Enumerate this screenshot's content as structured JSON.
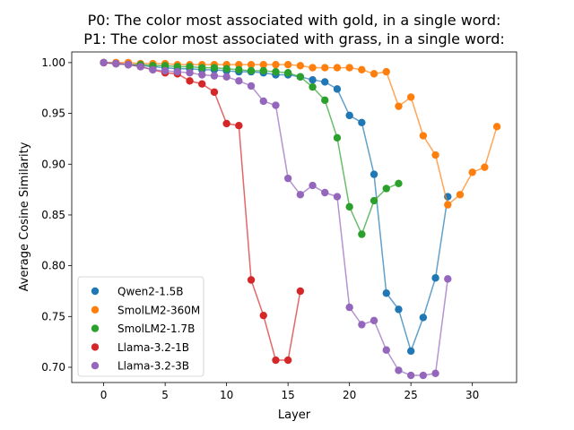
{
  "chart_data": {
    "type": "line",
    "title": "P0: The color most associated with gold, in a single word:",
    "subtitle": "P1: The color most associated with grass, in a single word:",
    "xlabel": "Layer",
    "ylabel": "Average Cosine Similarity",
    "xlim": [
      -2.6,
      33.6
    ],
    "ylim": [
      0.685,
      1.0105
    ],
    "xticks": [
      0,
      5,
      10,
      15,
      20,
      25,
      30
    ],
    "yticks": [
      0.7,
      0.75,
      0.8,
      0.85,
      0.9,
      0.95,
      1.0
    ],
    "xtick_labels": [
      "0",
      "5",
      "10",
      "15",
      "20",
      "25",
      "30"
    ],
    "ytick_labels": [
      "0.70",
      "0.75",
      "0.80",
      "0.85",
      "0.90",
      "0.95",
      "1.00"
    ],
    "grid": false,
    "legend_position": "lower left",
    "series": [
      {
        "name": "Qwen2-1.5B",
        "color": "#1f77b4",
        "x": [
          0,
          1,
          2,
          3,
          4,
          5,
          6,
          7,
          8,
          9,
          10,
          11,
          12,
          13,
          14,
          15,
          16,
          17,
          18,
          19,
          20,
          21,
          22,
          23,
          24,
          25,
          26,
          27,
          28
        ],
        "y": [
          1.0,
          0.999,
          0.998,
          0.997,
          0.996,
          0.995,
          0.994,
          0.994,
          0.993,
          0.993,
          0.992,
          0.991,
          0.991,
          0.99,
          0.988,
          0.988,
          0.986,
          0.983,
          0.981,
          0.974,
          0.948,
          0.941,
          0.89,
          0.773,
          0.757,
          0.716,
          0.749,
          0.788,
          0.868
        ]
      },
      {
        "name": "SmolLM2-360M",
        "color": "#ff7f0e",
        "x": [
          0,
          1,
          2,
          3,
          4,
          5,
          6,
          7,
          8,
          9,
          10,
          11,
          12,
          13,
          14,
          15,
          16,
          17,
          18,
          19,
          20,
          21,
          22,
          23,
          24,
          25,
          26,
          27,
          28,
          29,
          30,
          31,
          32
        ],
        "y": [
          1.0,
          1.0,
          1.0,
          0.999,
          0.999,
          0.999,
          0.998,
          0.998,
          0.998,
          0.998,
          0.998,
          0.998,
          0.998,
          0.998,
          0.998,
          0.998,
          0.997,
          0.995,
          0.995,
          0.995,
          0.995,
          0.993,
          0.989,
          0.991,
          0.957,
          0.966,
          0.928,
          0.909,
          0.86,
          0.87,
          0.892,
          0.897,
          0.937
        ]
      },
      {
        "name": "SmolLM2-1.7B",
        "color": "#2ca02c",
        "x": [
          0,
          1,
          2,
          3,
          4,
          5,
          6,
          7,
          8,
          9,
          10,
          11,
          12,
          13,
          14,
          15,
          16,
          17,
          18,
          19,
          20,
          21,
          22,
          23,
          24
        ],
        "y": [
          1.0,
          0.999,
          0.998,
          0.998,
          0.997,
          0.997,
          0.996,
          0.996,
          0.995,
          0.995,
          0.994,
          0.993,
          0.992,
          0.992,
          0.991,
          0.99,
          0.986,
          0.976,
          0.963,
          0.926,
          0.858,
          0.831,
          0.864,
          0.876,
          0.881
        ]
      },
      {
        "name": "Llama-3.2-1B",
        "color": "#d62728",
        "x": [
          0,
          1,
          2,
          3,
          4,
          5,
          6,
          7,
          8,
          9,
          10,
          11,
          12,
          13,
          14,
          15,
          16
        ],
        "y": [
          1.0,
          0.999,
          0.998,
          0.996,
          0.993,
          0.99,
          0.989,
          0.982,
          0.979,
          0.971,
          0.94,
          0.938,
          0.786,
          0.751,
          0.707,
          0.707,
          0.775
        ]
      },
      {
        "name": "Llama-3.2-3B",
        "color": "#9467bd",
        "x": [
          0,
          1,
          2,
          3,
          4,
          5,
          6,
          7,
          8,
          9,
          10,
          11,
          12,
          13,
          14,
          15,
          16,
          17,
          18,
          19,
          20,
          21,
          22,
          23,
          24,
          25,
          26,
          27,
          28
        ],
        "y": [
          1.0,
          0.999,
          0.998,
          0.996,
          0.993,
          0.992,
          0.991,
          0.99,
          0.988,
          0.987,
          0.986,
          0.982,
          0.977,
          0.962,
          0.958,
          0.886,
          0.87,
          0.879,
          0.872,
          0.868,
          0.759,
          0.742,
          0.746,
          0.717,
          0.697,
          0.692,
          0.692,
          0.694,
          0.787
        ]
      }
    ]
  }
}
